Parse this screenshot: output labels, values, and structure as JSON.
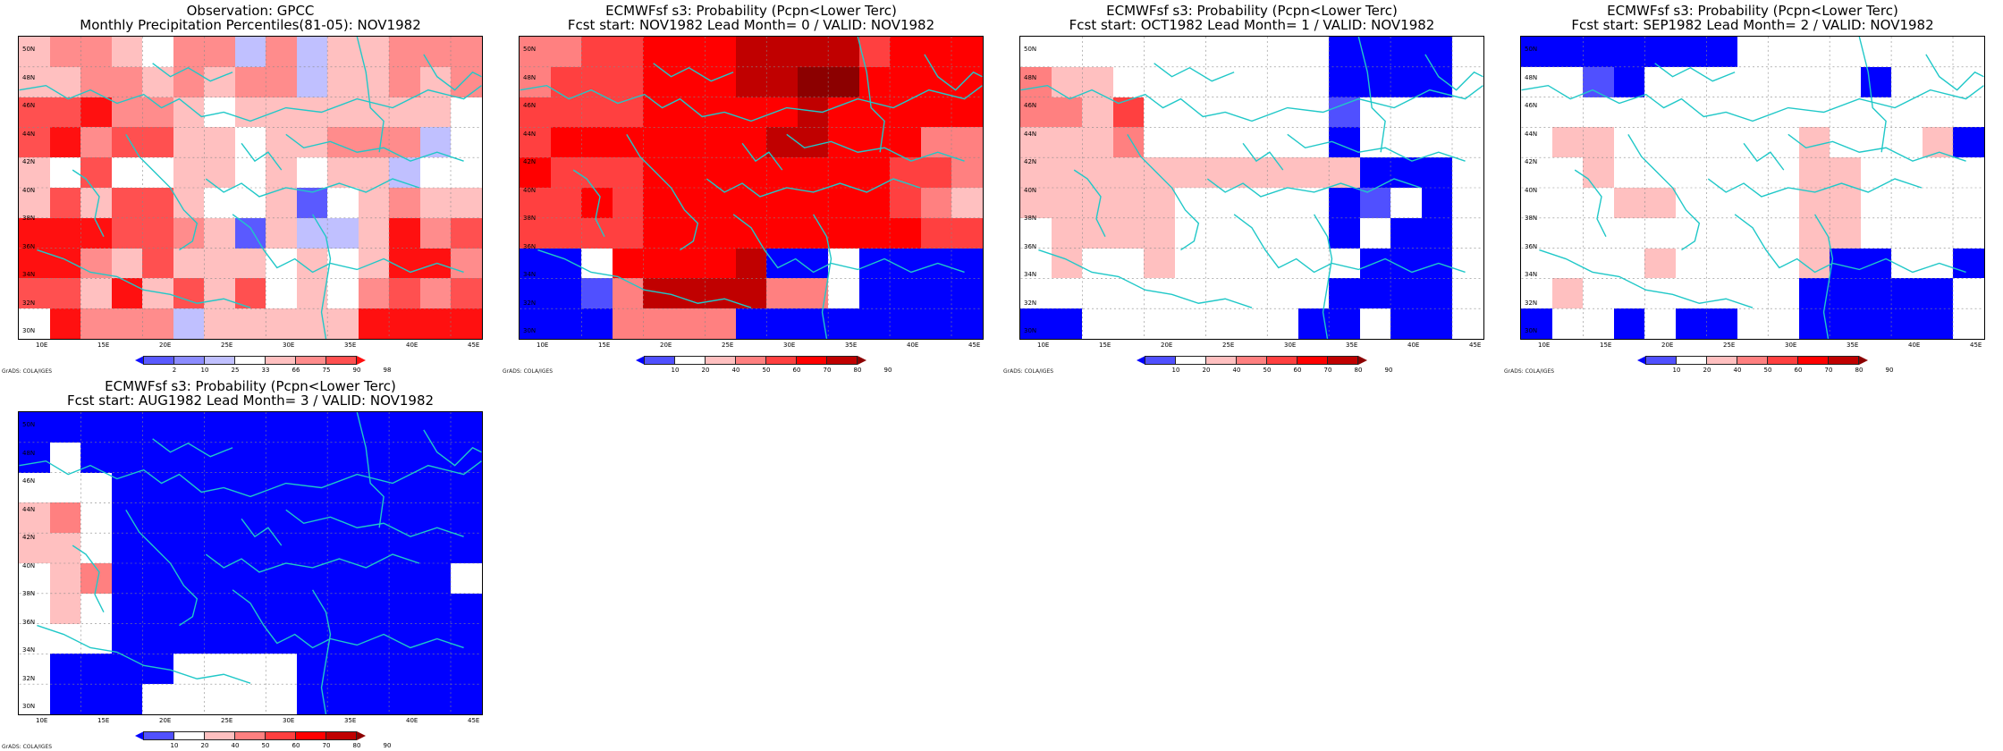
{
  "credit": "GrADS: COLA/IGES",
  "lat_labels": [
    "50N",
    "48N",
    "46N",
    "44N",
    "42N",
    "40N",
    "38N",
    "36N",
    "34N",
    "32N",
    "30N"
  ],
  "lon_labels": [
    "10E",
    "15E",
    "20E",
    "25E",
    "30E",
    "35E",
    "40E",
    "45E"
  ],
  "scales": {
    "obs": {
      "labels": [
        "2",
        "10",
        "25",
        "33",
        "66",
        "75",
        "90",
        "98"
      ],
      "colors": [
        "#1010ff",
        "#5a5aff",
        "#8c8cff",
        "#c0c0ff",
        "#ffffff",
        "#ffc0c0",
        "#ff8c8c",
        "#ff5050",
        "#ff1010"
      ]
    },
    "prob": {
      "labels": [
        "10",
        "20",
        "40",
        "50",
        "60",
        "70",
        "80",
        "90"
      ],
      "colors": [
        "#0000ff",
        "#5050ff",
        "#ffffff",
        "#ffc0c0",
        "#ff8080",
        "#ff4040",
        "#ff0000",
        "#c00000",
        "#8c0000"
      ]
    }
  },
  "panels": [
    {
      "title1": "Observation: GPCC",
      "title2": "Monthly Precipitation Percentiles(81-05): NOV1982",
      "scale": "obs",
      "grid": [
        "566546636355666",
        "556656566355656",
        "778665455555554",
        "786775545566634",
        "547445545455344",
        "575775445145655",
        "888776515335867",
        "886575554545886",
        "775857574546767",
        "486663555558888"
      ]
    },
    {
      "title1": "ECMWFsf s3: Probability (Pcpn<Lower Terc)",
      "title2": "Fcst start: NOV1982  Lead Month= 0 / VALID: NOV1982",
      "scale": "prob",
      "grid": [
        "445566677775666",
        "455566677886666",
        "555566666766666",
        "566666667766644",
        "655566666666554",
        "556566666666543",
        "555566666666655",
        "002666670020000",
        "001477774420000",
        "000444400000000"
      ]
    },
    {
      "title1": "ECMWFsf s3: Probability (Pcpn<Lower Terc)",
      "title2": "Fcst start: OCT1982  Lead Month= 1 / VALID: NOV1982",
      "scale": "prob",
      "grid": [
        "222222222200002",
        "433222222200002",
        "443522222212222",
        "333422222202222",
        "333333333330002",
        "333332222201202",
        "233332222202002",
        "232232222220002",
        "222222222200002",
        "002222222002002"
      ]
    },
    {
      "title1": "ECMWFsf s3: Probability (Pcpn<Lower Terc)",
      "title2": "Fcst start: SEP1982  Lead Month= 2 / VALID: NOV1982",
      "scale": "prob",
      "grid": [
        "000000022222222",
        "221022222220222",
        "222222222222222",
        "233222222322230",
        "223222222332222",
        "222332222332222",
        "222222222332222",
        "222232222300220",
        "232222222000002",
        "022020022000002"
      ]
    },
    {
      "title1": "ECMWFsf s3: Probability (Pcpn<Lower Terc)",
      "title2": "Fcst start: AUG1982  Lead Month= 3 / VALID: NOV1982",
      "scale": "prob",
      "grid": [
        "000000000000000",
        "020000000000000",
        "222000000000000",
        "342000000000000",
        "332000000000000",
        "234000000000002",
        "232000000000000",
        "222000000000000",
        "200002222000000",
        "200022222000000"
      ]
    }
  ]
}
